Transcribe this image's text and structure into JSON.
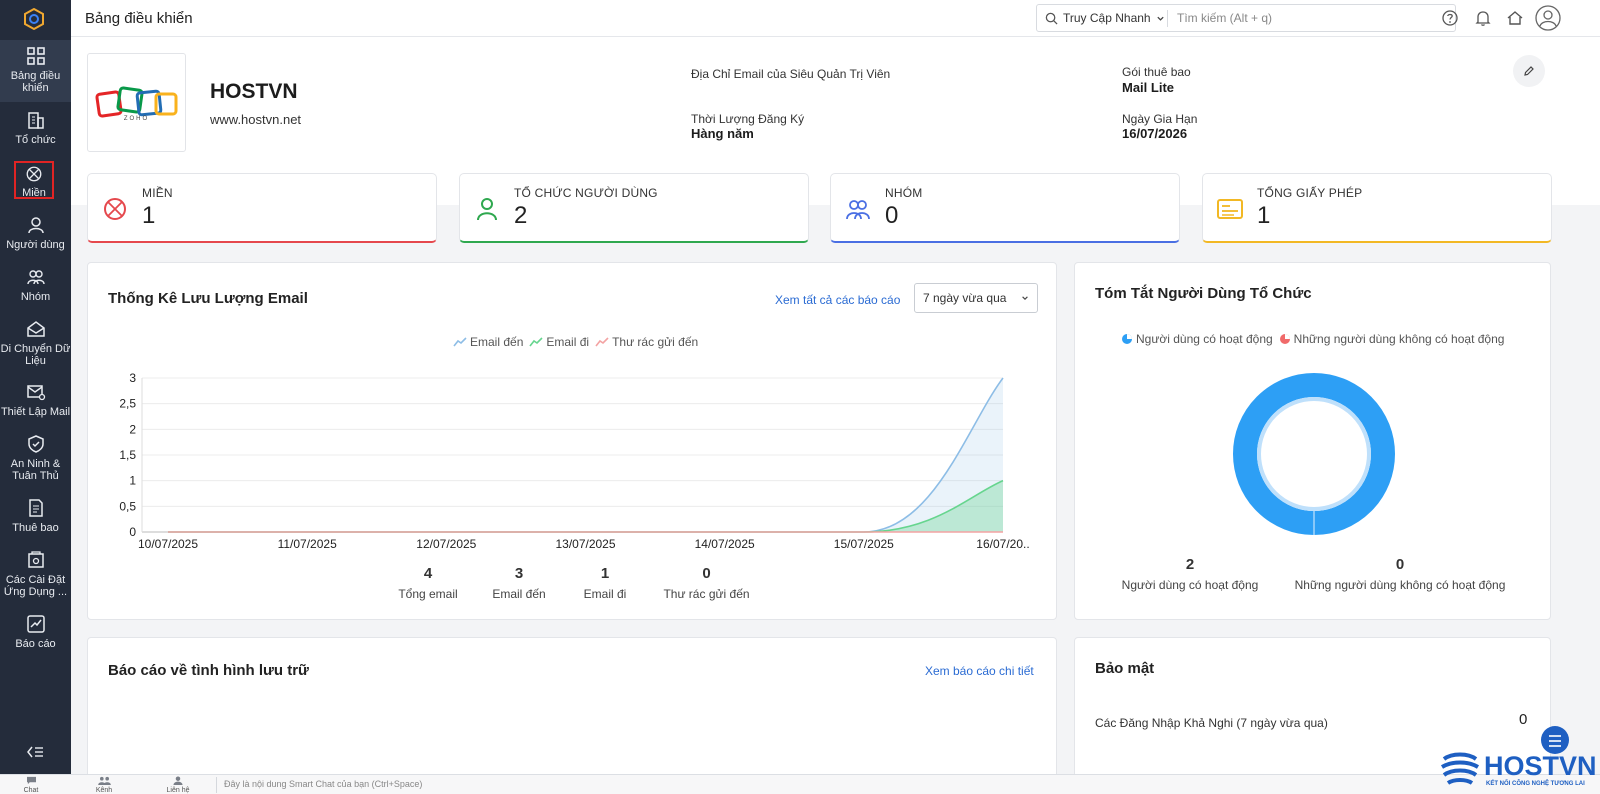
{
  "sidebar": {
    "items": [
      {
        "label": "Bảng điều khiển",
        "icon": "dashboard-icon"
      },
      {
        "label": "Tổ chức",
        "icon": "building-icon"
      },
      {
        "label": "Miền",
        "icon": "domain-icon"
      },
      {
        "label": "Người dùng",
        "icon": "user-icon"
      },
      {
        "label": "Nhóm",
        "icon": "group-icon"
      },
      {
        "label": "Di Chuyển Dữ Liệu",
        "icon": "migration-icon"
      },
      {
        "label": "Thiết Lập Mail",
        "icon": "mail-settings-icon"
      },
      {
        "label": "An Ninh & Tuân Thủ",
        "icon": "shield-icon"
      },
      {
        "label": "Thuê bao",
        "icon": "subscription-icon"
      },
      {
        "label": "Các Cài Đặt Ứng Dụng ...",
        "icon": "app-settings-icon"
      },
      {
        "label": "Báo cáo",
        "icon": "report-icon"
      }
    ]
  },
  "topbar": {
    "title": "Bảng điều khiển",
    "quick_access": "Truy Cập Nhanh",
    "search_placeholder": "Tìm kiếm (Alt + q)"
  },
  "org": {
    "name": "HOSTVN",
    "website": "www.hostvn.net",
    "logo_text": "ZOHO",
    "admin_email_label": "Địa Chỉ Email của Siêu Quản Trị Viên",
    "admin_email_value": "",
    "duration_label": "Thời Lượng Đăng Ký",
    "duration_value": "Hàng năm",
    "plan_label": "Gói thuê bao",
    "plan_value": "Mail Lite",
    "renewal_label": "Ngày Gia Hạn",
    "renewal_value": "16/07/2026"
  },
  "stats": [
    {
      "label": "MIỀN",
      "value": "1",
      "color": "#e5484d"
    },
    {
      "label": "TỔ CHỨC NGƯỜI DÙNG",
      "value": "2",
      "color": "#2fa84f"
    },
    {
      "label": "NHÓM",
      "value": "0",
      "color": "#4a6fe3"
    },
    {
      "label": "TỔNG GIẤY PHÉP",
      "value": "1",
      "color": "#f2b824"
    }
  ],
  "email_panel": {
    "title": "Thống Kê Lưu Lượng Email",
    "view_all": "Xem tất cả các báo cáo",
    "period": "7 ngày vừa qua",
    "legend": [
      "Email đến",
      "Email đi",
      "Thư rác gửi đến"
    ],
    "totals": [
      {
        "value": "4",
        "label": "Tổng email"
      },
      {
        "value": "3",
        "label": "Email đến"
      },
      {
        "value": "1",
        "label": "Email đi"
      },
      {
        "value": "0",
        "label": "Thư rác gửi đến"
      }
    ]
  },
  "chart_data": {
    "type": "area",
    "categories": [
      "10/07/2025",
      "11/07/2025",
      "12/07/2025",
      "13/07/2025",
      "14/07/2025",
      "15/07/2025",
      "16/07/20.."
    ],
    "series": [
      {
        "name": "Email đến",
        "values": [
          0,
          0,
          0,
          0,
          0,
          0,
          3
        ],
        "color": "#8dbde6"
      },
      {
        "name": "Email đi",
        "values": [
          0,
          0,
          0,
          0,
          0,
          0,
          1
        ],
        "color": "#66d58e"
      },
      {
        "name": "Thư rác gửi đến",
        "values": [
          0,
          0,
          0,
          0,
          0,
          0,
          0
        ],
        "color": "#f3a3a3"
      }
    ],
    "yticks": [
      "0",
      "0,5",
      "1",
      "1,5",
      "2",
      "2,5",
      "3"
    ],
    "ylim": [
      0,
      3
    ],
    "grid": true,
    "legend_position": "top"
  },
  "user_summary": {
    "title": "Tóm Tắt Người Dùng Tổ Chức",
    "legend_active": "Người dùng có hoạt động",
    "legend_inactive": "Những người dùng không có hoạt động",
    "active_count": "2",
    "inactive_count": "0",
    "active_color": "#2d9ff5",
    "inactive_color": "#f06a6a"
  },
  "storage_panel": {
    "title": "Báo cáo về tình hình lưu trữ",
    "link": "Xem báo cáo chi tiết"
  },
  "security_panel": {
    "title": "Bảo mật",
    "item_label": "Các Đăng Nhập Khả Nghi (7 ngày vừa qua)",
    "item_value": "0"
  },
  "bottombar": {
    "items": [
      "Chat",
      "Kênh",
      "Liên hệ"
    ],
    "chat_placeholder": "Đây là nội dung Smart Chat của bạn (Ctrl+Space)"
  },
  "watermark": {
    "brand": "HOSTVN",
    "tagline": "KẾT NỐI CÔNG NGHỆ TƯƠNG LAI"
  }
}
